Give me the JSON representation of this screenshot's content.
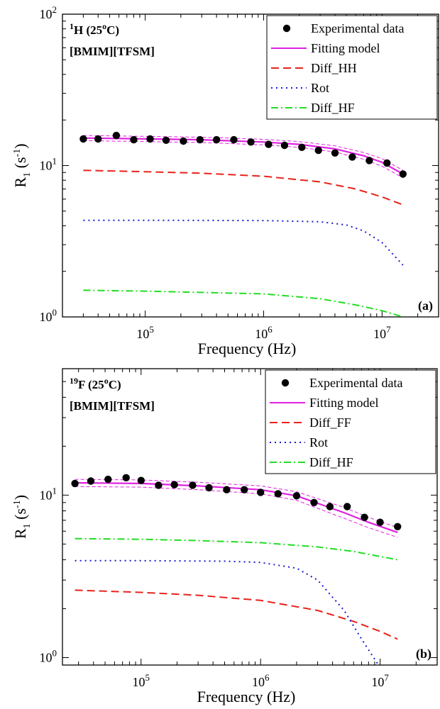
{
  "chart_data": [
    {
      "type": "scatter",
      "panel_label": "(a)",
      "annotation": {
        "nucleus": "H",
        "nucleus_mass": "1",
        "temp": "(25",
        "temp_sup": "o",
        "temp_end": "C)",
        "compound": "[BMIM][TFSM]"
      },
      "xlabel": "Frequency (Hz)",
      "ylabel": {
        "main": "R",
        "sub": "1",
        "unit_open": " (s",
        "unit_sup": "-1",
        "unit_close": ")"
      },
      "x_scale": "log",
      "y_scale": "log",
      "xlim": [
        20000,
        30000000
      ],
      "ylim": [
        1,
        100
      ],
      "x_ticks": [
        {
          "value": 100000,
          "base": "10",
          "exp": "5"
        },
        {
          "value": 1000000,
          "base": "10",
          "exp": "6"
        },
        {
          "value": 10000000,
          "base": "10",
          "exp": "7"
        }
      ],
      "y_ticks": [
        {
          "value": 1,
          "base": "10",
          "exp": "0"
        },
        {
          "value": 10,
          "base": "10",
          "exp": "1"
        },
        {
          "value": 100,
          "base": "10",
          "exp": "2"
        }
      ],
      "legend": {
        "position": "top-right",
        "entries": [
          "Experimental data",
          "Fitting model",
          "Diff_HH",
          "Rot",
          "Diff_HF"
        ]
      },
      "experimental": {
        "x": [
          30000,
          40000,
          57000,
          80000,
          110000,
          150000,
          210000,
          290000,
          400000,
          560000,
          780000,
          1100000,
          1500000,
          2100000,
          2900000,
          4000000,
          5600000,
          7800000,
          11000000,
          15000000
        ],
        "y": [
          15,
          15,
          15.8,
          14.8,
          15,
          14.7,
          14.5,
          14.8,
          14.8,
          14.8,
          14.3,
          13.8,
          13.6,
          13.2,
          12.6,
          12.1,
          11.4,
          10.8,
          10.4,
          8.8
        ]
      },
      "fit": {
        "x": [
          30000,
          100000,
          300000,
          1000000,
          2000000,
          4000000,
          7000000,
          10000000,
          15000000
        ],
        "y": [
          15.2,
          15,
          14.8,
          14.3,
          13.8,
          12.9,
          11.6,
          10.5,
          8.8
        ],
        "band_upper": [
          15.8,
          15.6,
          15.4,
          14.9,
          14.4,
          13.5,
          12.2,
          11.1,
          9.3
        ],
        "band_lower": [
          14.6,
          14.4,
          14.2,
          13.7,
          13.2,
          12.3,
          11.0,
          9.9,
          8.3
        ]
      },
      "series": [
        {
          "name": "Diff_HH",
          "color": "#e8221b",
          "style": "dashed",
          "x": [
            30000,
            100000,
            300000,
            1000000,
            3000000,
            6000000,
            10000000,
            15000000
          ],
          "y": [
            9.3,
            9.1,
            8.9,
            8.5,
            7.8,
            7.0,
            6.2,
            5.5
          ]
        },
        {
          "name": "Rot",
          "color": "#1a1ad0",
          "style": "dotted",
          "x": [
            30000,
            100000,
            1000000,
            3000000,
            5000000,
            7000000,
            10000000,
            15000000
          ],
          "y": [
            4.35,
            4.35,
            4.33,
            4.25,
            4.05,
            3.7,
            3.1,
            2.2
          ]
        },
        {
          "name": "Diff_HF",
          "color": "#22dd22",
          "style": "dashdot",
          "x": [
            30000,
            100000,
            1000000,
            3000000,
            6000000,
            10000000,
            15000000
          ],
          "y": [
            1.5,
            1.48,
            1.42,
            1.32,
            1.2,
            1.1,
            1.0
          ]
        }
      ]
    },
    {
      "type": "scatter",
      "panel_label": "(b)",
      "annotation": {
        "nucleus": "F",
        "nucleus_mass": "19",
        "temp": "(25",
        "temp_sup": "o",
        "temp_end": "C)",
        "compound": "[BMIM][TFSM]"
      },
      "xlabel": "Frequency (Hz)",
      "ylabel": {
        "main": "R",
        "sub": "1",
        "unit_open": " (s",
        "unit_sup": "-1",
        "unit_close": ")"
      },
      "x_scale": "log",
      "y_scale": "log",
      "xlim": [
        22000,
        30000000
      ],
      "ylim": [
        0.9,
        60
      ],
      "x_ticks": [
        {
          "value": 100000,
          "base": "10",
          "exp": "5"
        },
        {
          "value": 1000000,
          "base": "10",
          "exp": "6"
        },
        {
          "value": 10000000,
          "base": "10",
          "exp": "7"
        }
      ],
      "y_ticks": [
        {
          "value": 1,
          "base": "10",
          "exp": "0"
        },
        {
          "value": 10,
          "base": "10",
          "exp": "1"
        }
      ],
      "legend": {
        "position": "top-right",
        "entries": [
          "Experimental data",
          "Fitting model",
          "Diff_FF",
          "Rot",
          "Diff_HF"
        ]
      },
      "experimental": {
        "x": [
          28000,
          38000,
          53000,
          75000,
          100000,
          140000,
          190000,
          270000,
          370000,
          520000,
          730000,
          1000000,
          1400000,
          2000000,
          2800000,
          3800000,
          5300000,
          7400000,
          10000000,
          14000000
        ],
        "y": [
          11.8,
          12.2,
          12.5,
          12.8,
          12.3,
          11.5,
          11.6,
          11.5,
          11.1,
          10.8,
          10.8,
          10.4,
          10.2,
          9.9,
          9.0,
          8.5,
          8.5,
          7.3,
          6.8,
          6.4
        ]
      },
      "fit": {
        "x": [
          28000,
          100000,
          300000,
          1000000,
          2000000,
          3000000,
          5000000,
          8000000,
          14000000
        ],
        "y": [
          11.9,
          11.8,
          11.4,
          10.8,
          9.9,
          8.9,
          7.8,
          6.8,
          5.9
        ],
        "band_upper": [
          12.5,
          12.4,
          12.0,
          11.4,
          10.5,
          9.5,
          8.4,
          7.3,
          6.3
        ],
        "band_lower": [
          11.3,
          11.2,
          10.8,
          10.2,
          9.3,
          8.3,
          7.2,
          6.3,
          5.5
        ]
      },
      "series": [
        {
          "name": "Diff_FF",
          "color": "#e8221b",
          "style": "dashed",
          "x": [
            28000,
            100000,
            300000,
            1000000,
            3000000,
            6000000,
            10000000,
            14000000
          ],
          "y": [
            2.6,
            2.52,
            2.42,
            2.25,
            1.95,
            1.67,
            1.45,
            1.3
          ]
        },
        {
          "name": "Rot",
          "color": "#1a1ad0",
          "style": "dotted",
          "x": [
            28000,
            100000,
            500000,
            1000000,
            2000000,
            3000000,
            5000000,
            7000000,
            9500000
          ],
          "y": [
            3.95,
            3.95,
            3.92,
            3.85,
            3.55,
            3.0,
            1.95,
            1.3,
            0.92
          ]
        },
        {
          "name": "Diff_HF",
          "color": "#22dd22",
          "style": "dashdot",
          "x": [
            28000,
            100000,
            300000,
            1000000,
            3000000,
            6000000,
            14000000
          ],
          "y": [
            5.4,
            5.35,
            5.25,
            5.1,
            4.8,
            4.5,
            4.0
          ]
        }
      ]
    }
  ]
}
